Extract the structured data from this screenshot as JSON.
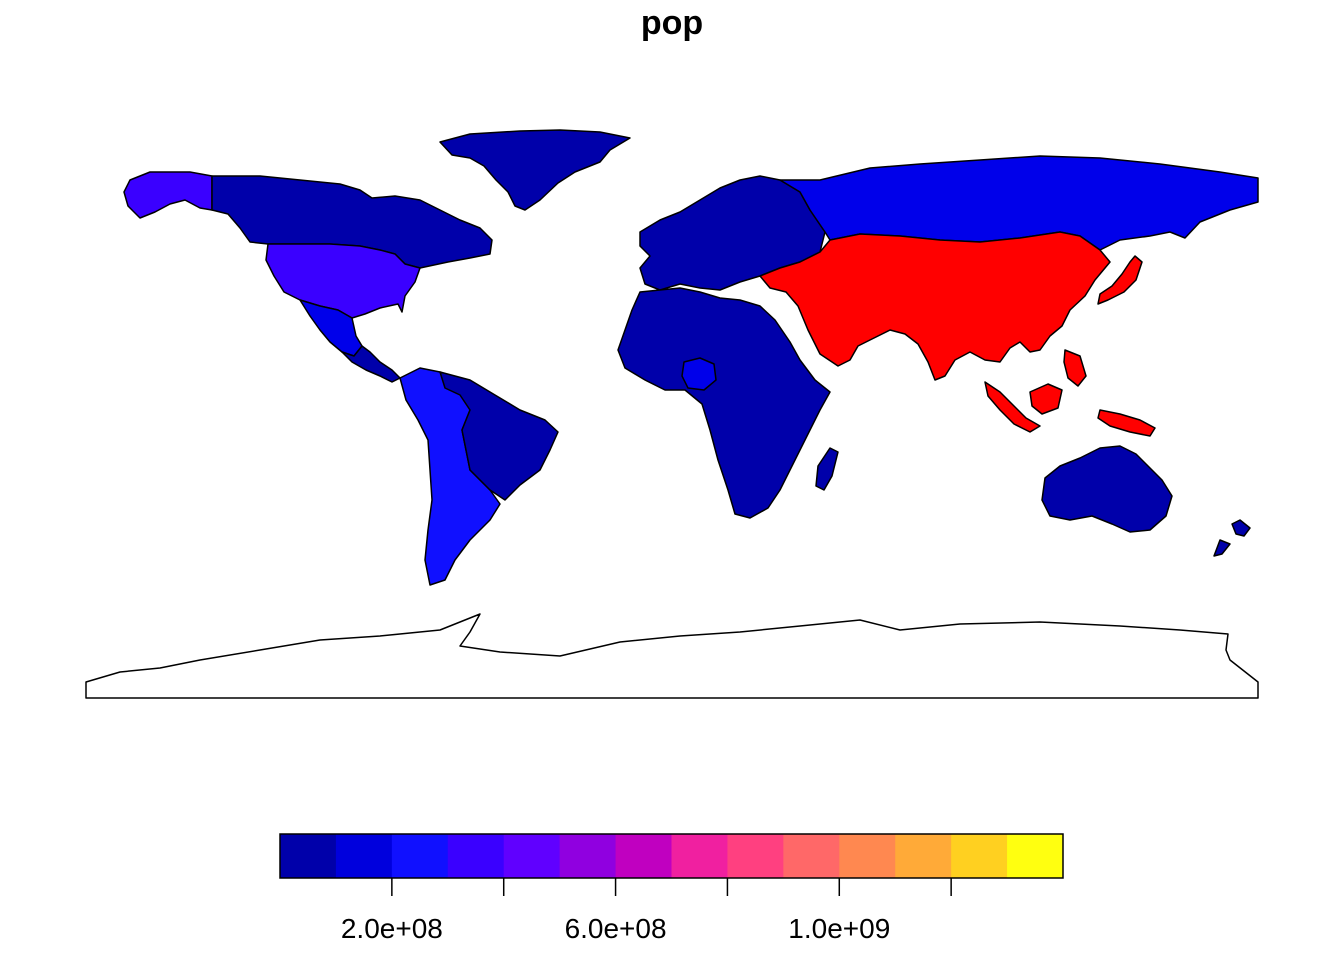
{
  "title": "pop",
  "colors": {
    "low": "#0000AA",
    "mid": "#1010FF",
    "high": "#FF0000",
    "stroke": "#000000"
  },
  "regions": [
    {
      "name": "Greenland",
      "color": "#0000AA"
    },
    {
      "name": "Alaska",
      "color": "#3A00FF"
    },
    {
      "name": "Canada",
      "color": "#0000AA"
    },
    {
      "name": "United States",
      "color": "#3A00FF"
    },
    {
      "name": "Mexico",
      "color": "#0000EA"
    },
    {
      "name": "Central America",
      "color": "#0000AA"
    },
    {
      "name": "Brazil",
      "color": "#1010FF"
    },
    {
      "name": "South America",
      "color": "#0000AA"
    },
    {
      "name": "Europe",
      "color": "#0000AA"
    },
    {
      "name": "Russia",
      "color": "#0000EA"
    },
    {
      "name": "Africa",
      "color": "#0000AA"
    },
    {
      "name": "Nigeria",
      "color": "#0000EA"
    },
    {
      "name": "Madagascar",
      "color": "#0000AA"
    },
    {
      "name": "Asia",
      "color": "#FF0000"
    },
    {
      "name": "Japan",
      "color": "#FF0000"
    },
    {
      "name": "Southeast Asia Islands",
      "color": "#FF0000"
    },
    {
      "name": "Australia",
      "color": "#0000AA"
    },
    {
      "name": "New Zealand",
      "color": "#0000AA"
    },
    {
      "name": "Antarctica",
      "color": "#FFFFFF"
    }
  ],
  "legend": {
    "colors": [
      "#0000AA",
      "#0000DD",
      "#1010FF",
      "#3A00FF",
      "#6000FF",
      "#9000E0",
      "#C000C0",
      "#F020A0",
      "#FF4080",
      "#FF6868",
      "#FF8850",
      "#FFAA38",
      "#FFD020",
      "#FFFF10"
    ],
    "min": 0,
    "max": 1400000000,
    "ticks": [
      {
        "value": 200000000,
        "label": "2.0e+08"
      },
      {
        "value": 400000000,
        "label": ""
      },
      {
        "value": 600000000,
        "label": "6.0e+08"
      },
      {
        "value": 800000000,
        "label": ""
      },
      {
        "value": 1000000000,
        "label": "1.0e+09"
      },
      {
        "value": 1200000000,
        "label": ""
      }
    ]
  }
}
